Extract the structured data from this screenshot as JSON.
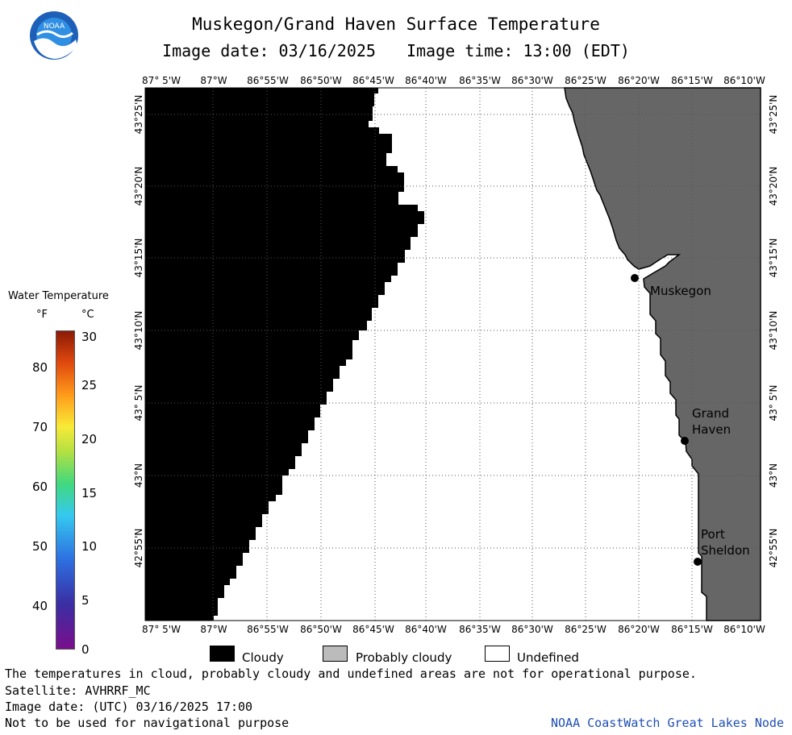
{
  "header": {
    "title": "Muskegon/Grand Haven Surface Temperature",
    "image_date": "Image date: 03/16/2025",
    "image_time": "Image time: 13:00 (EDT)"
  },
  "logo": {
    "text": "NOAA",
    "icon": "noaa-logo-icon"
  },
  "map": {
    "lon_labels": [
      "87° 5'W",
      "87°W",
      "86°55'W",
      "86°50'W",
      "86°45'W",
      "86°40'W",
      "86°35'W",
      "86°30'W",
      "86°25'W",
      "86°20'W",
      "86°15'W",
      "86°10'W"
    ],
    "lat_labels": [
      "43°25'N",
      "43°20'N",
      "43°15'N",
      "43°10'N",
      "43° 5'N",
      "43°N",
      "42°55'N"
    ],
    "places": [
      {
        "lines": [
          "Muskegon"
        ]
      },
      {
        "lines": [
          "Grand",
          "Haven"
        ]
      },
      {
        "lines": [
          "Port",
          "Sheldon"
        ]
      }
    ],
    "colors": {
      "cloudy": "#000000",
      "probably_cloudy": "#bbbbbb",
      "land": "#666666",
      "undefined": "#ffffff"
    }
  },
  "colorbar": {
    "title": "Water Temperature",
    "unit_f": "°F",
    "unit_c": "°C",
    "f_labels": [
      "80",
      "70",
      "60",
      "50",
      "40"
    ],
    "c_labels": [
      "30",
      "25",
      "20",
      "15",
      "10",
      "5",
      "0"
    ]
  },
  "legend": {
    "cloudy": "Cloudy",
    "probably_cloudy": "Probably cloudy",
    "undefined": "Undefined"
  },
  "footer": {
    "note": "The temperatures in cloud, probably cloudy and undefined areas are not for operational purpose.",
    "satellite": "Satellite: AVHRRF_MC",
    "utc_date": "Image date: (UTC) 03/16/2025  17:00",
    "nav": "Not to be used for navigational purpose",
    "credit": "NOAA CoastWatch Great Lakes Node"
  }
}
